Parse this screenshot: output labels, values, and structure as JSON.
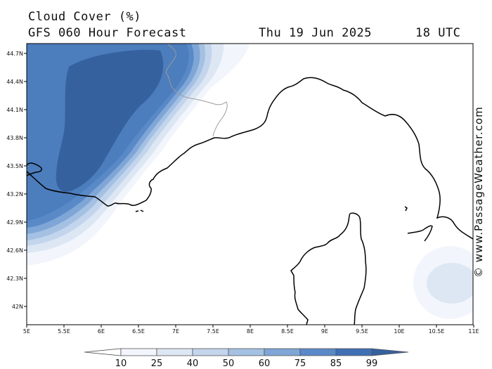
{
  "header": {
    "title": "Cloud Cover (%)",
    "subtitle": "GFS 060 Hour Forecast",
    "date": "Thu 19 Jun 2025",
    "time": "18 UTC"
  },
  "credit": "© www.PassageWeather.com",
  "axes": {
    "lat_labels": [
      "44.7N",
      "44.4N",
      "44.1N",
      "43.8N",
      "43.5N",
      "43.2N",
      "42.9N",
      "42.6N",
      "42.3N",
      "42N"
    ],
    "lon_labels": [
      "5E",
      "5.5E",
      "6E",
      "6.5E",
      "7E",
      "7.5E",
      "8E",
      "8.5E",
      "9E",
      "9.5E",
      "10E",
      "10.5E",
      "11E"
    ]
  },
  "legend": {
    "labels": [
      "10",
      "25",
      "40",
      "50",
      "60",
      "75",
      "85",
      "99"
    ],
    "colors": [
      "#ffffff",
      "#f2f6fc",
      "#dde7f4",
      "#c3d5ec",
      "#a4c1e3",
      "#7fa6d6",
      "#5a89c8",
      "#3f6fb5",
      "#36619f"
    ]
  }
}
